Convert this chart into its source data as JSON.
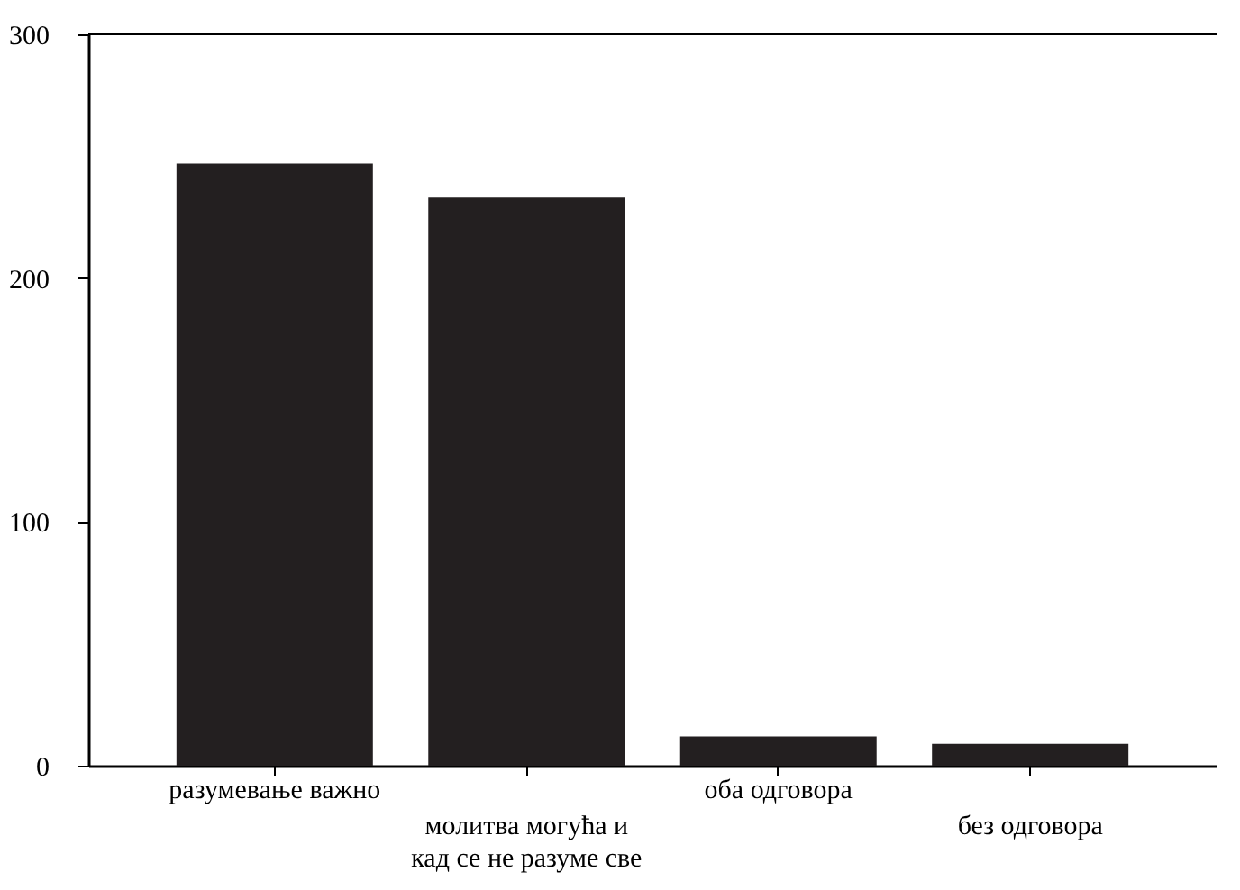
{
  "chart_data": {
    "type": "bar",
    "categories": [
      "разумевање важно",
      "молитва могућа и кад се не разуме све",
      "оба одговора",
      "без одговора"
    ],
    "values": [
      247,
      233,
      12,
      9
    ],
    "color": "#231f20",
    "ylim": [
      0,
      300
    ],
    "yticks": [
      0,
      100,
      200,
      300
    ],
    "grid": false
  }
}
